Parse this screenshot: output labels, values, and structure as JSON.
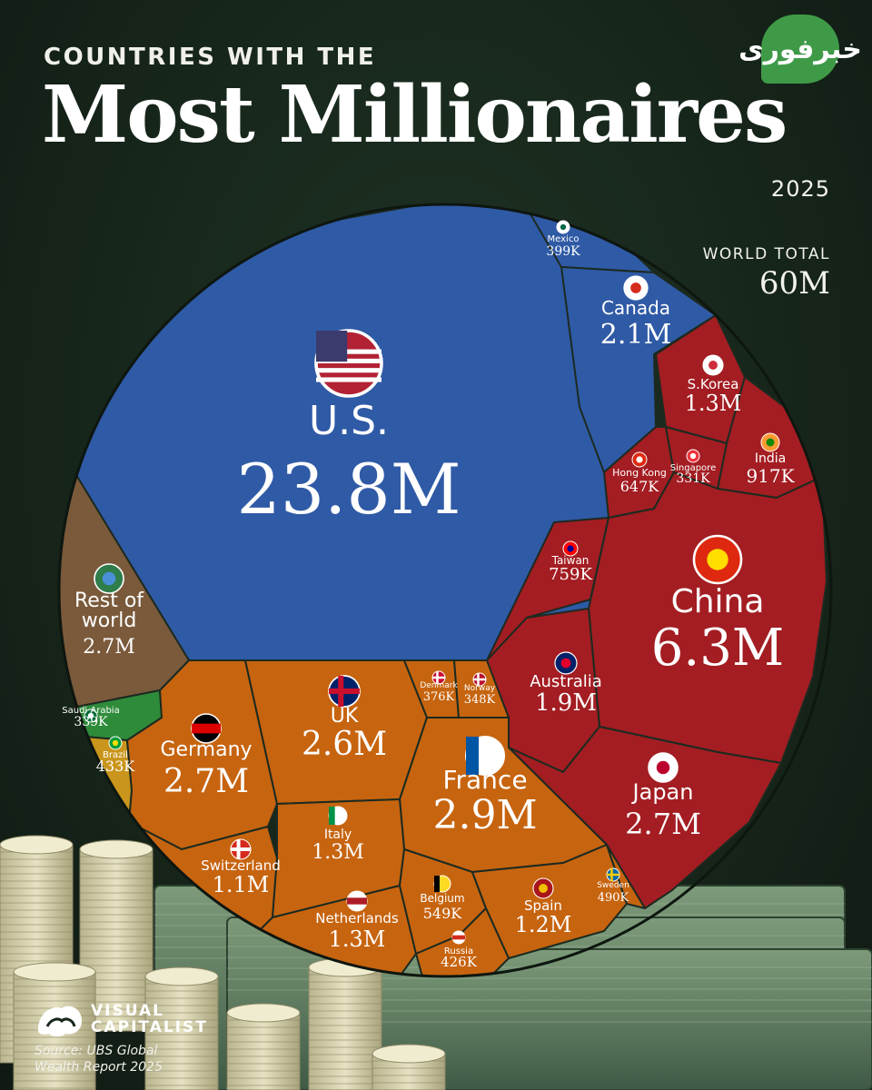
{
  "header": {
    "eyebrow": "COUNTRIES WITH THE",
    "title": "Most Millionaires",
    "year": "2025",
    "world_total_label": "WORLD TOTAL",
    "world_total_value": "60M"
  },
  "watermark": {
    "text": "خبرفوری",
    "color": "#3f9a48"
  },
  "footer": {
    "brand": "VISUAL\nCAPITALIST",
    "source": "Source: UBS Global\nWealth Report 2025"
  },
  "colors": {
    "americas": "#2f5aa6",
    "asia_pacific": "#a31d22",
    "europe": "#c7640f",
    "rest_of_world": "#7a5a3b",
    "saudi_arabia": "#2e8b3a",
    "brazil": "#c9951c",
    "background": "#17261b"
  },
  "chart_data": {
    "type": "voronoi-treemap",
    "title": "Most Millionaires",
    "subtitle": "COUNTRIES WITH THE",
    "unit": "millionaires",
    "total": "60M",
    "cells": [
      {
        "id": "us",
        "name": "U.S.",
        "label": "23.8M",
        "value": 23800000,
        "flag": "us-flag-icon",
        "region": "americas"
      },
      {
        "id": "mexico",
        "name": "Mexico",
        "label": "399K",
        "value": 399000,
        "flag": "mexico-flag-icon",
        "region": "americas"
      },
      {
        "id": "canada",
        "name": "Canada",
        "label": "2.1M",
        "value": 2100000,
        "flag": "canada-flag-icon",
        "region": "americas"
      },
      {
        "id": "skorea",
        "name": "S.Korea",
        "label": "1.3M",
        "value": 1300000,
        "flag": "south-korea-flag-icon",
        "region": "asia_pacific"
      },
      {
        "id": "india",
        "name": "India",
        "label": "917K",
        "value": 917000,
        "flag": "india-flag-icon",
        "region": "asia_pacific"
      },
      {
        "id": "hongkong",
        "name": "Hong Kong",
        "label": "647K",
        "value": 647000,
        "flag": "hong-kong-flag-icon",
        "region": "asia_pacific"
      },
      {
        "id": "singapore",
        "name": "Singapore",
        "label": "331K",
        "value": 331000,
        "flag": "singapore-flag-icon",
        "region": "asia_pacific"
      },
      {
        "id": "taiwan",
        "name": "Taiwan",
        "label": "759K",
        "value": 759000,
        "flag": "taiwan-flag-icon",
        "region": "asia_pacific"
      },
      {
        "id": "china",
        "name": "China",
        "label": "6.3M",
        "value": 6300000,
        "flag": "china-flag-icon",
        "region": "asia_pacific"
      },
      {
        "id": "australia",
        "name": "Australia",
        "label": "1.9M",
        "value": 1900000,
        "flag": "australia-flag-icon",
        "region": "asia_pacific"
      },
      {
        "id": "japan",
        "name": "Japan",
        "label": "2.7M",
        "value": 2700000,
        "flag": "japan-flag-icon",
        "region": "asia_pacific"
      },
      {
        "id": "rest",
        "name": "Rest of world",
        "label": "2.7M",
        "value": 2700000,
        "flag": "globe-icon",
        "region": "rest_of_world"
      },
      {
        "id": "saudi",
        "name": "Saudi Arabia",
        "label": "339K",
        "value": 339000,
        "flag": "saudi-arabia-flag-icon",
        "region": "saudi_arabia"
      },
      {
        "id": "brazil",
        "name": "Brazil",
        "label": "433K",
        "value": 433000,
        "flag": "brazil-flag-icon",
        "region": "brazil"
      },
      {
        "id": "germany",
        "name": "Germany",
        "label": "2.7M",
        "value": 2700000,
        "flag": "germany-flag-icon",
        "region": "europe"
      },
      {
        "id": "uk",
        "name": "UK",
        "label": "2.6M",
        "value": 2600000,
        "flag": "uk-flag-icon",
        "region": "europe"
      },
      {
        "id": "denmark",
        "name": "Denmark",
        "label": "376K",
        "value": 376000,
        "flag": "denmark-flag-icon",
        "region": "europe"
      },
      {
        "id": "norway",
        "name": "Norway",
        "label": "348K",
        "value": 348000,
        "flag": "norway-flag-icon",
        "region": "europe"
      },
      {
        "id": "france",
        "name": "France",
        "label": "2.9M",
        "value": 2900000,
        "flag": "france-flag-icon",
        "region": "europe"
      },
      {
        "id": "switzerland",
        "name": "Switzerland",
        "label": "1.1M",
        "value": 1100000,
        "flag": "switzerland-flag-icon",
        "region": "europe"
      },
      {
        "id": "italy",
        "name": "Italy",
        "label": "1.3M",
        "value": 1300000,
        "flag": "italy-flag-icon",
        "region": "europe"
      },
      {
        "id": "netherlands",
        "name": "Netherlands",
        "label": "1.3M",
        "value": 1300000,
        "flag": "netherlands-flag-icon",
        "region": "europe"
      },
      {
        "id": "belgium",
        "name": "Belgium",
        "label": "549K",
        "value": 549000,
        "flag": "belgium-flag-icon",
        "region": "europe"
      },
      {
        "id": "spain",
        "name": "Spain",
        "label": "1.2M",
        "value": 1200000,
        "flag": "spain-flag-icon",
        "region": "europe"
      },
      {
        "id": "sweden",
        "name": "Sweden",
        "label": "490K",
        "value": 490000,
        "flag": "sweden-flag-icon",
        "region": "europe"
      },
      {
        "id": "russia",
        "name": "Russia",
        "label": "426K",
        "value": 426000,
        "flag": "russia-flag-icon",
        "region": "europe"
      }
    ]
  }
}
